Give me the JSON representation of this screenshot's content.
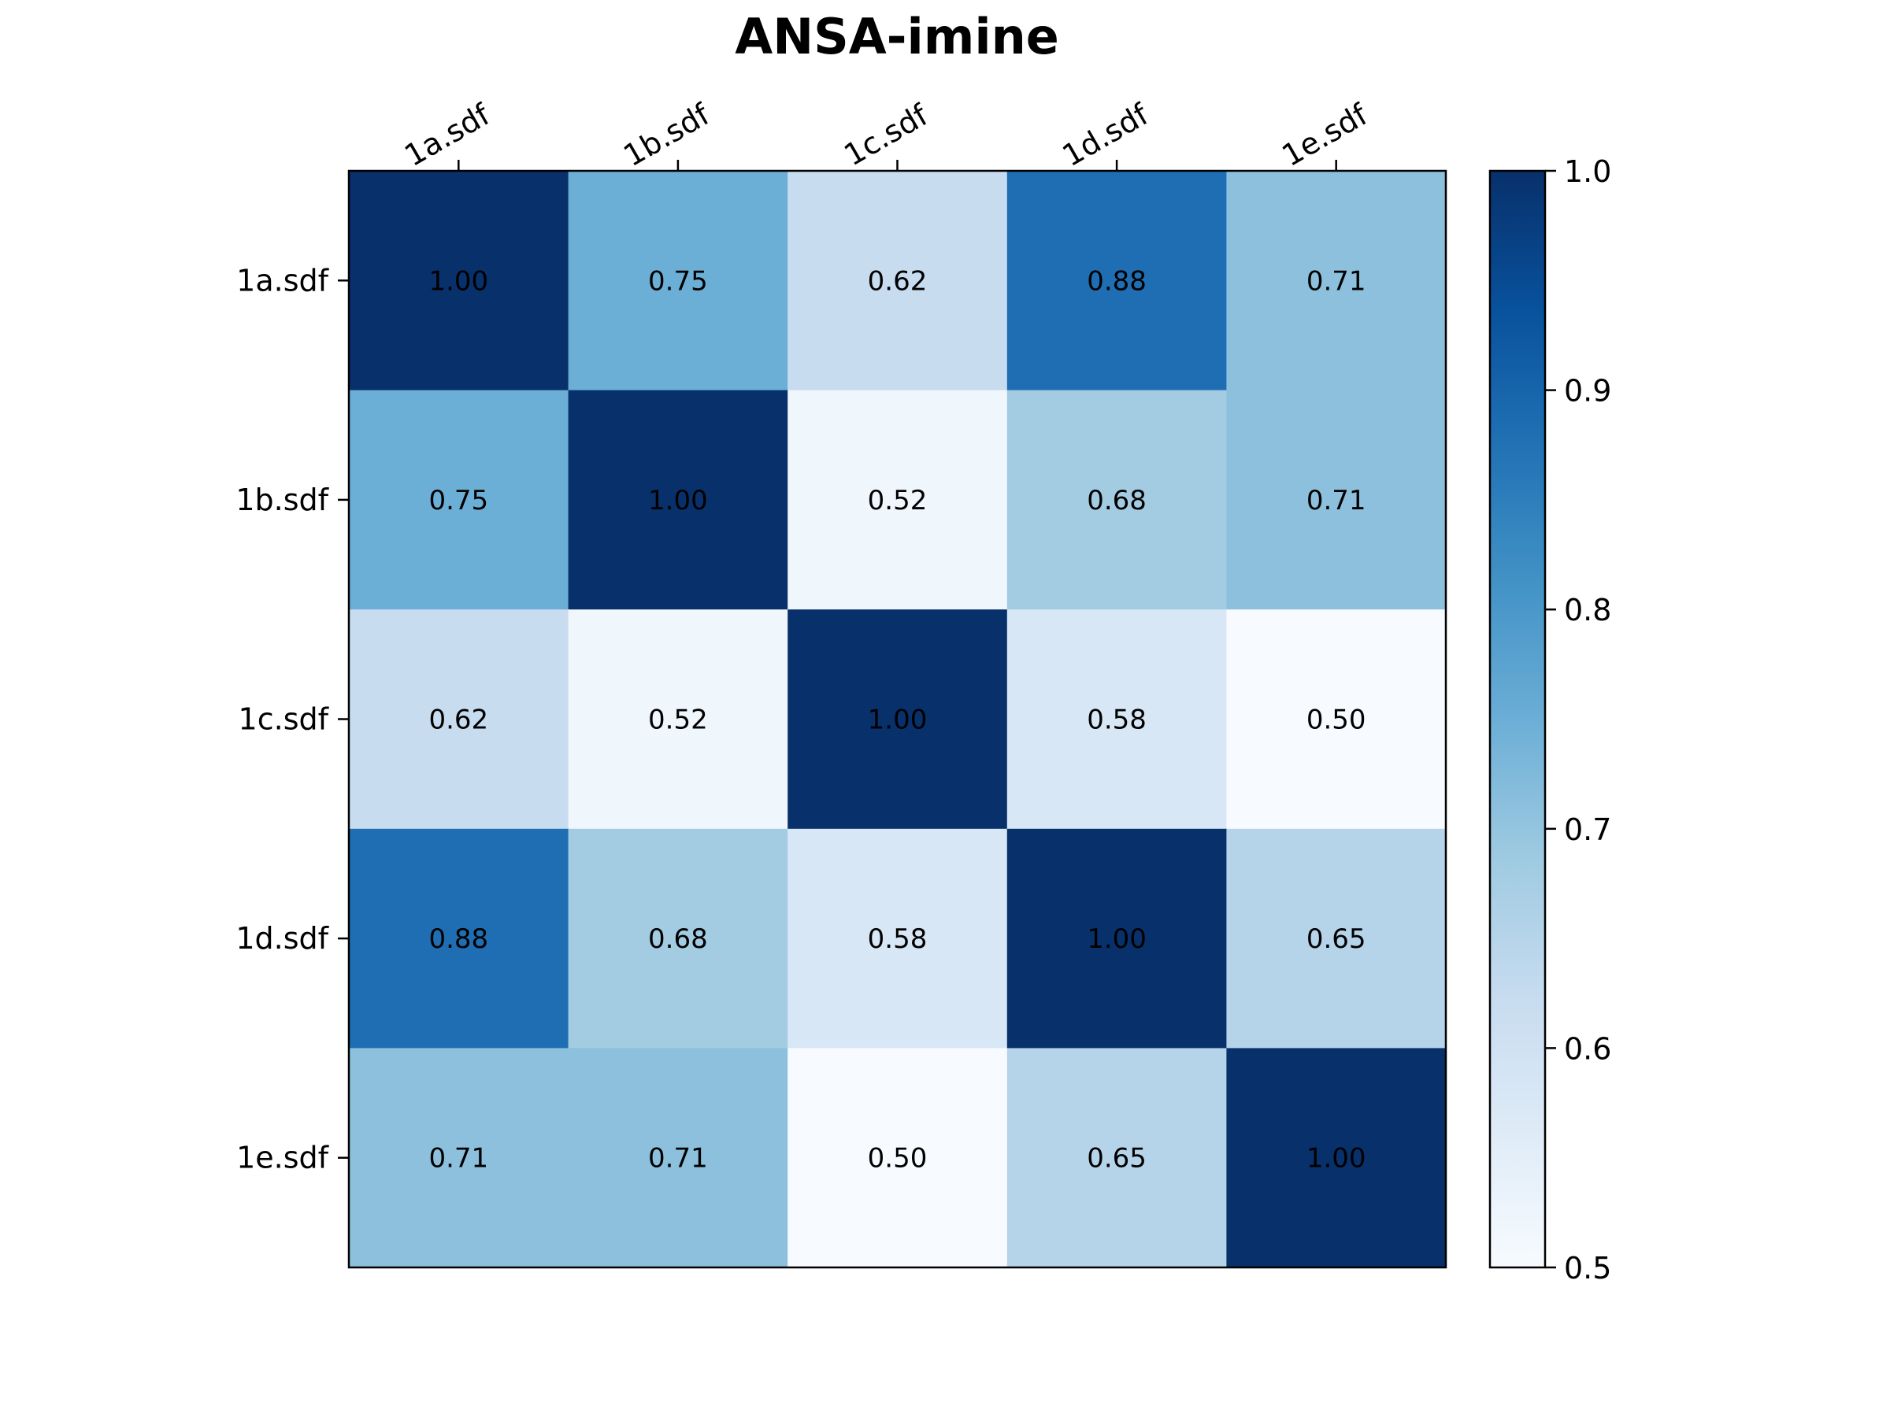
{
  "chart_data": {
    "type": "heatmap",
    "title": "ANSA-imine",
    "x_labels": [
      "1a.sdf",
      "1b.sdf",
      "1c.sdf",
      "1d.sdf",
      "1e.sdf"
    ],
    "y_labels": [
      "1a.sdf",
      "1b.sdf",
      "1c.sdf",
      "1d.sdf",
      "1e.sdf"
    ],
    "values": [
      [
        1.0,
        0.75,
        0.62,
        0.88,
        0.71
      ],
      [
        0.75,
        1.0,
        0.52,
        0.68,
        0.71
      ],
      [
        0.62,
        0.52,
        1.0,
        0.58,
        0.5
      ],
      [
        0.88,
        0.68,
        0.58,
        1.0,
        0.65
      ],
      [
        0.71,
        0.71,
        0.5,
        0.65,
        1.0
      ]
    ],
    "cell_labels": [
      [
        "1.00",
        "0.75",
        "0.62",
        "0.88",
        "0.71"
      ],
      [
        "0.75",
        "1.00",
        "0.52",
        "0.68",
        "0.71"
      ],
      [
        "0.62",
        "0.52",
        "1.00",
        "0.58",
        "0.50"
      ],
      [
        "0.88",
        "0.68",
        "0.58",
        "1.00",
        "0.65"
      ],
      [
        "0.71",
        "0.71",
        "0.50",
        "0.65",
        "1.00"
      ]
    ],
    "colormap": "Blues",
    "color_range": [
      0.5,
      1.0
    ],
    "colorbar": {
      "ticks": [
        0.5,
        0.6,
        0.7,
        0.8,
        0.9,
        1.0
      ],
      "tick_labels": [
        "0.5",
        "0.6",
        "0.7",
        "0.8",
        "0.9",
        "1.0"
      ],
      "placement": "right"
    },
    "x_tick_position": "top",
    "grid": false
  }
}
